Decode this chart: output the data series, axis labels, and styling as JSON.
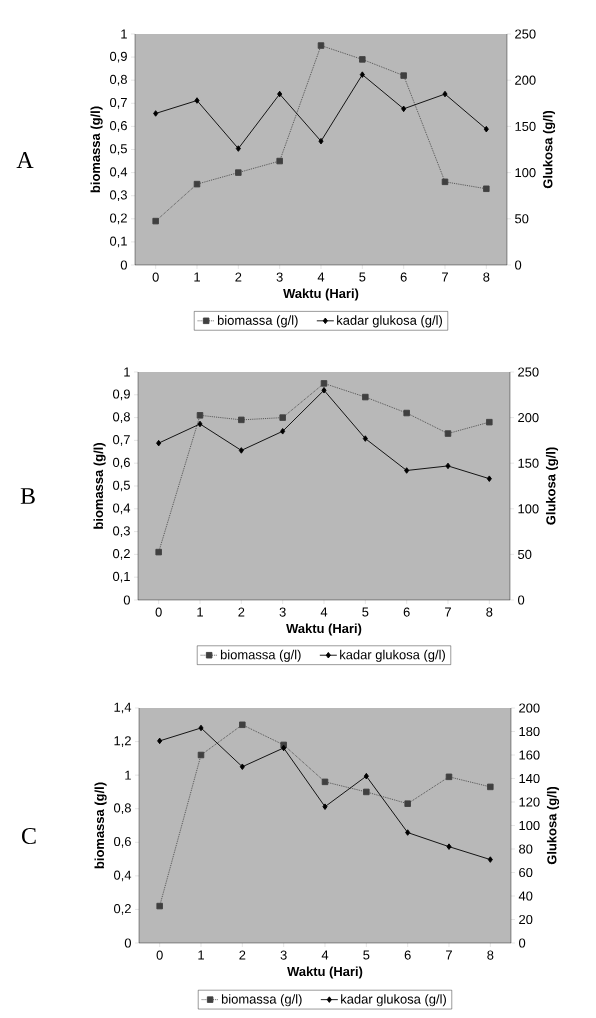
{
  "chart_data": [
    {
      "type": "line",
      "title": "A",
      "xlabel": "Waktu (Hari)",
      "ylabel": "biomassa (g/l)",
      "y2label": "Glukosa (g/l)",
      "legend": "bottom",
      "categories": [
        "0",
        "1",
        "2",
        "3",
        "4",
        "5",
        "6",
        "7",
        "8"
      ],
      "ylim": [
        0,
        1
      ],
      "yticks": [
        0,
        {
          "value": 0.1,
          "label": "0,1"
        },
        {
          "value": 0.2,
          "label": "0,2"
        },
        {
          "value": 0.3,
          "label": "0,3"
        },
        {
          "value": 0.4,
          "label": "0,4"
        },
        {
          "value": 0.5,
          "label": "0,5"
        },
        {
          "value": 0.6,
          "label": "0,6"
        },
        {
          "value": 0.7,
          "label": "0,7"
        },
        {
          "value": 0.8,
          "label": "0,8"
        },
        {
          "value": 0.9,
          "label": "0,9"
        },
        1
      ],
      "y2lim": [
        0,
        250
      ],
      "y2ticks": [
        0,
        50,
        100,
        150,
        200,
        250
      ],
      "series": [
        {
          "name": "biomassa (g/l)",
          "color": "#404040",
          "marker": "square",
          "line_style": "dotted",
          "axis": "y",
          "values": [
            0.19,
            0.35,
            0.4,
            0.45,
            0.95,
            0.89,
            0.82,
            0.36,
            0.33
          ]
        },
        {
          "name": "kadar glukosa (g/l)",
          "color": "#000000",
          "marker": "diamond",
          "line_style": "solid",
          "axis": "y2",
          "values": [
            164,
            178,
            126,
            185,
            134,
            206,
            169,
            185,
            147
          ]
        }
      ]
    },
    {
      "type": "line",
      "title": "B",
      "xlabel": "Waktu (Hari)",
      "ylabel": "biomassa (g/l)",
      "y2label": "Glukosa (g/l)",
      "legend": "bottom",
      "categories": [
        "0",
        "1",
        "2",
        "3",
        "4",
        "5",
        "6",
        "7",
        "8"
      ],
      "ylim": [
        0,
        1
      ],
      "yticks": [
        0,
        {
          "value": 0.1,
          "label": "0,1"
        },
        {
          "value": 0.2,
          "label": "0,2"
        },
        {
          "value": 0.3,
          "label": "0,3"
        },
        {
          "value": 0.4,
          "label": "0,4"
        },
        {
          "value": 0.5,
          "label": "0,5"
        },
        {
          "value": 0.6,
          "label": "0,6"
        },
        {
          "value": 0.7,
          "label": "0,7"
        },
        {
          "value": 0.8,
          "label": "0,8"
        },
        {
          "value": 0.9,
          "label": "0,9"
        },
        1
      ],
      "y2lim": [
        0,
        250
      ],
      "y2ticks": [
        0,
        50,
        100,
        150,
        200,
        250
      ],
      "series": [
        {
          "name": "biomassa (g/l)",
          "color": "#404040",
          "marker": "square",
          "line_style": "dotted",
          "axis": "y",
          "values": [
            0.21,
            0.81,
            0.79,
            0.8,
            0.95,
            0.89,
            0.82,
            0.73,
            0.78
          ]
        },
        {
          "name": "kadar glukosa (g/l)",
          "color": "#000000",
          "marker": "diamond",
          "line_style": "solid",
          "axis": "y2",
          "values": [
            172,
            193,
            164,
            185,
            230,
            177,
            142,
            147,
            133
          ]
        }
      ]
    },
    {
      "type": "line",
      "title": "C",
      "xlabel": "Waktu (Hari)",
      "ylabel": "biomassa (g/l)",
      "y2label": "Glukosa (g/l)",
      "legend": "bottom",
      "categories": [
        "0",
        "1",
        "2",
        "3",
        "4",
        "5",
        "6",
        "7",
        "8"
      ],
      "ylim": [
        0,
        1.4
      ],
      "yticks": [
        0,
        {
          "value": 0.2,
          "label": "0,2"
        },
        {
          "value": 0.4,
          "label": "0,4"
        },
        {
          "value": 0.6,
          "label": "0,6"
        },
        {
          "value": 0.8,
          "label": "0,8"
        },
        1,
        {
          "value": 1.2,
          "label": "1,2"
        },
        {
          "value": 1.4,
          "label": "1,4"
        }
      ],
      "y2lim": [
        0,
        200
      ],
      "y2ticks": [
        0,
        20,
        40,
        60,
        80,
        100,
        120,
        140,
        160,
        180,
        200
      ],
      "series": [
        {
          "name": "biomassa (g/l)",
          "color": "#404040",
          "marker": "square",
          "line_style": "dotted",
          "axis": "y",
          "values": [
            0.22,
            1.12,
            1.3,
            1.18,
            0.96,
            0.9,
            0.83,
            0.99,
            0.93
          ]
        },
        {
          "name": "kadar glukosa (g/l)",
          "color": "#000000",
          "marker": "diamond",
          "line_style": "solid",
          "axis": "y2",
          "values": [
            172,
            183,
            150,
            166,
            116,
            142,
            94,
            82,
            71
          ]
        }
      ]
    }
  ]
}
